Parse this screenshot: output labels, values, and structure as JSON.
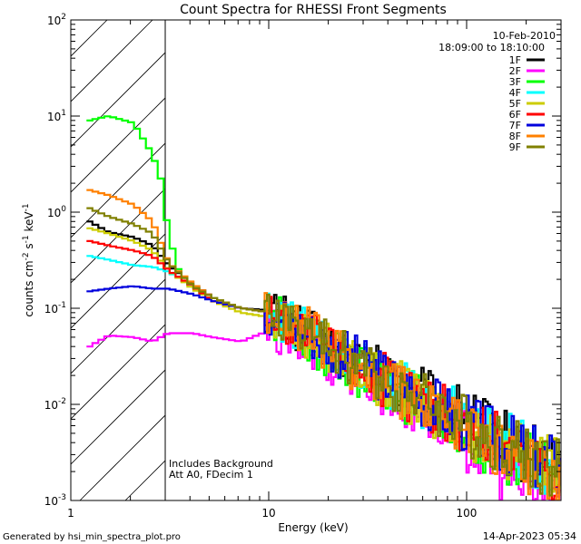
{
  "chart_data": {
    "type": "line",
    "title": "Count Spectra for RHESSI Front Segments",
    "xlabel": "Energy (keV)",
    "ylabel_parts": {
      "base": "counts cm",
      "exp1": "-2",
      "mid1": " s",
      "exp2": "-1",
      "mid2": " keV",
      "exp3": "-1"
    },
    "x_scale": "log",
    "y_scale": "log",
    "xlim": [
      1,
      300
    ],
    "ylim": [
      0.001,
      100
    ],
    "x_ticks": [
      {
        "value": 1,
        "label": "1"
      },
      {
        "value": 10,
        "label": "10"
      },
      {
        "value": 100,
        "label": "100"
      }
    ],
    "y_ticks": [
      {
        "value": 0.001,
        "base": "10",
        "exp": "-3"
      },
      {
        "value": 0.01,
        "base": "10",
        "exp": "-2"
      },
      {
        "value": 0.1,
        "base": "10",
        "exp": "-1"
      },
      {
        "value": 1,
        "base": "10",
        "exp": "0"
      },
      {
        "value": 10,
        "base": "10",
        "exp": "1"
      },
      {
        "value": 100,
        "base": "10",
        "exp": "2"
      }
    ],
    "hatched_region": {
      "x_from": 1,
      "x_to": 3
    },
    "date_label": "10-Feb-2010",
    "time_label": "18:09:00 to 18:10:00",
    "annotations": [
      "Includes Background",
      "Att A0, FDecim 1"
    ],
    "series": [
      {
        "name": "1F",
        "color": "#000000",
        "points": [
          [
            1.2,
            0.8
          ],
          [
            1.5,
            0.62
          ],
          [
            2.0,
            0.55
          ],
          [
            2.5,
            0.45
          ],
          [
            3.0,
            0.28
          ],
          [
            4.0,
            0.18
          ],
          [
            5.0,
            0.13
          ],
          [
            7.0,
            0.1
          ],
          [
            10,
            0.095
          ],
          [
            15,
            0.06
          ],
          [
            20,
            0.04
          ],
          [
            30,
            0.025
          ],
          [
            50,
            0.015
          ],
          [
            80,
            0.009
          ],
          [
            120,
            0.006
          ],
          [
            200,
            0.003
          ],
          [
            290,
            0.0025
          ]
        ]
      },
      {
        "name": "2F",
        "color": "#ff00ff",
        "points": [
          [
            1.2,
            0.04
          ],
          [
            1.5,
            0.052
          ],
          [
            2.0,
            0.05
          ],
          [
            2.5,
            0.045
          ],
          [
            3.0,
            0.055
          ],
          [
            4.0,
            0.055
          ],
          [
            5.0,
            0.05
          ],
          [
            7.0,
            0.045
          ],
          [
            10,
            0.06
          ],
          [
            15,
            0.04
          ],
          [
            20,
            0.03
          ],
          [
            30,
            0.02
          ],
          [
            50,
            0.01
          ],
          [
            80,
            0.006
          ],
          [
            120,
            0.003
          ],
          [
            200,
            0.0013
          ],
          [
            290,
            0.001
          ]
        ]
      },
      {
        "name": "3F",
        "color": "#00ff00",
        "points": [
          [
            1.2,
            9.0
          ],
          [
            1.5,
            10.0
          ],
          [
            2.0,
            8.5
          ],
          [
            2.5,
            4.0
          ],
          [
            2.8,
            2.0
          ],
          [
            3.0,
            0.6
          ],
          [
            3.5,
            0.2
          ],
          [
            5.0,
            0.13
          ],
          [
            7.0,
            0.1
          ],
          [
            10,
            0.09
          ],
          [
            15,
            0.05
          ],
          [
            20,
            0.035
          ],
          [
            30,
            0.02
          ],
          [
            50,
            0.012
          ],
          [
            80,
            0.007
          ],
          [
            120,
            0.004
          ],
          [
            200,
            0.0025
          ],
          [
            290,
            0.0018
          ]
        ]
      },
      {
        "name": "4F",
        "color": "#00ffff",
        "points": [
          [
            1.2,
            0.35
          ],
          [
            1.5,
            0.32
          ],
          [
            2.0,
            0.28
          ],
          [
            2.5,
            0.27
          ],
          [
            3.0,
            0.24
          ],
          [
            4.0,
            0.17
          ],
          [
            5.0,
            0.13
          ],
          [
            7.0,
            0.1
          ],
          [
            10,
            0.09
          ],
          [
            15,
            0.055
          ],
          [
            20,
            0.04
          ],
          [
            30,
            0.025
          ],
          [
            50,
            0.014
          ],
          [
            80,
            0.008
          ],
          [
            120,
            0.005
          ],
          [
            200,
            0.003
          ],
          [
            290,
            0.002
          ]
        ]
      },
      {
        "name": "5F",
        "color": "#cccc00",
        "points": [
          [
            1.2,
            0.68
          ],
          [
            1.5,
            0.6
          ],
          [
            2.0,
            0.5
          ],
          [
            2.5,
            0.4
          ],
          [
            3.0,
            0.25
          ],
          [
            4.0,
            0.16
          ],
          [
            5.0,
            0.12
          ],
          [
            7.0,
            0.09
          ],
          [
            10,
            0.08
          ],
          [
            15,
            0.055
          ],
          [
            20,
            0.04
          ],
          [
            30,
            0.022
          ],
          [
            50,
            0.013
          ],
          [
            80,
            0.007
          ],
          [
            120,
            0.0045
          ],
          [
            200,
            0.0028
          ],
          [
            290,
            0.002
          ]
        ]
      },
      {
        "name": "6F",
        "color": "#ff0000",
        "points": [
          [
            1.2,
            0.5
          ],
          [
            1.5,
            0.45
          ],
          [
            2.0,
            0.4
          ],
          [
            2.5,
            0.35
          ],
          [
            3.0,
            0.25
          ],
          [
            4.0,
            0.17
          ],
          [
            5.0,
            0.12
          ],
          [
            7.0,
            0.1
          ],
          [
            10,
            0.09
          ],
          [
            15,
            0.06
          ],
          [
            20,
            0.04
          ],
          [
            30,
            0.024
          ],
          [
            50,
            0.013
          ],
          [
            80,
            0.008
          ],
          [
            120,
            0.005
          ],
          [
            200,
            0.003
          ],
          [
            290,
            0.0022
          ]
        ]
      },
      {
        "name": "7F",
        "color": "#0000dd",
        "points": [
          [
            1.2,
            0.15
          ],
          [
            1.5,
            0.16
          ],
          [
            2.0,
            0.17
          ],
          [
            2.5,
            0.16
          ],
          [
            3.0,
            0.16
          ],
          [
            4.0,
            0.14
          ],
          [
            5.0,
            0.12
          ],
          [
            7.0,
            0.1
          ],
          [
            10,
            0.09
          ],
          [
            15,
            0.06
          ],
          [
            20,
            0.04
          ],
          [
            30,
            0.025
          ],
          [
            50,
            0.014
          ],
          [
            80,
            0.008
          ],
          [
            120,
            0.005
          ],
          [
            200,
            0.003
          ],
          [
            290,
            0.0022
          ]
        ]
      },
      {
        "name": "8F",
        "color": "#ff8000",
        "points": [
          [
            1.2,
            1.7
          ],
          [
            1.5,
            1.5
          ],
          [
            2.0,
            1.2
          ],
          [
            2.5,
            0.8
          ],
          [
            3.0,
            0.3
          ],
          [
            4.0,
            0.18
          ],
          [
            5.0,
            0.13
          ],
          [
            7.0,
            0.1
          ],
          [
            10,
            0.09
          ],
          [
            15,
            0.06
          ],
          [
            20,
            0.04
          ],
          [
            30,
            0.022
          ],
          [
            50,
            0.012
          ],
          [
            80,
            0.007
          ],
          [
            120,
            0.004
          ],
          [
            200,
            0.0025
          ],
          [
            290,
            0.0018
          ]
        ]
      },
      {
        "name": "9F",
        "color": "#808000",
        "points": [
          [
            1.2,
            1.1
          ],
          [
            1.5,
            0.9
          ],
          [
            2.0,
            0.75
          ],
          [
            2.5,
            0.6
          ],
          [
            3.0,
            0.3
          ],
          [
            4.0,
            0.17
          ],
          [
            5.0,
            0.13
          ],
          [
            7.0,
            0.1
          ],
          [
            10,
            0.09
          ],
          [
            15,
            0.06
          ],
          [
            20,
            0.04
          ],
          [
            30,
            0.025
          ],
          [
            50,
            0.014
          ],
          [
            80,
            0.008
          ],
          [
            120,
            0.005
          ],
          [
            200,
            0.003
          ],
          [
            290,
            0.002
          ]
        ]
      }
    ]
  },
  "footer": {
    "generated_by": "Generated by hsi_min_spectra_plot.pro",
    "timestamp": "14-Apr-2023 05:34"
  }
}
